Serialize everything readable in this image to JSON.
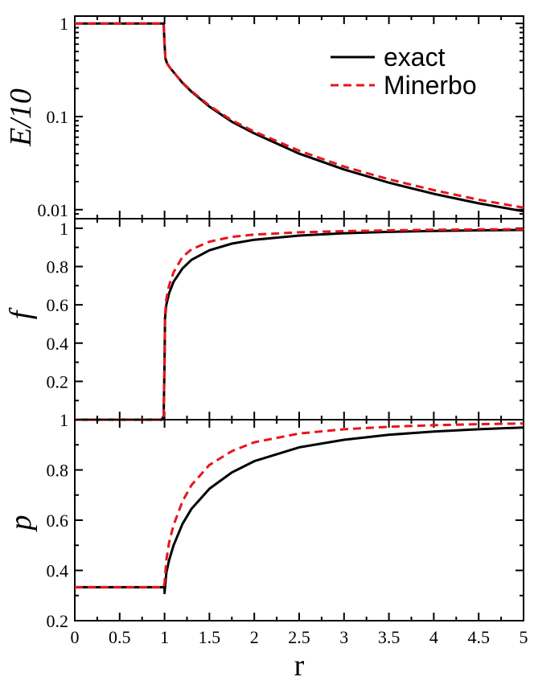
{
  "chart_data": {
    "type": "line",
    "x": {
      "label": "r",
      "range": [
        0,
        5
      ],
      "ticks": [
        0,
        0.5,
        1,
        1.5,
        2,
        2.5,
        3,
        3.5,
        4,
        4.5,
        5
      ],
      "tick_labels": [
        "0",
        "0.5",
        "1",
        "1.5",
        "2",
        "2.5",
        "3",
        "3.5",
        "4",
        "4.5",
        "5"
      ]
    },
    "legend": {
      "placement": "top-right of top panel",
      "entries": [
        {
          "name": "exact",
          "style": "solid",
          "color": "#000000"
        },
        {
          "name": "Minerbo",
          "style": "dashed",
          "color": "#e8141c"
        }
      ]
    },
    "panels": [
      {
        "id": "E",
        "ylabel": "E/10",
        "yscale": "log",
        "ylim": [
          0.008,
          1.2
        ],
        "ticks": [
          0.01,
          0.1,
          1
        ],
        "tick_labels": [
          "0.01",
          "0.1",
          "1"
        ],
        "series": [
          {
            "name": "exact",
            "x": [
              0,
              0.5,
              0.99,
              1.0,
              1.01,
              1.03,
              1.06,
              1.1,
              1.2,
              1.3,
              1.5,
              1.75,
              2,
              2.5,
              3,
              3.5,
              4,
              4.5,
              5
            ],
            "y": [
              1,
              1,
              1,
              0.6,
              0.42,
              0.37,
              0.335,
              0.3,
              0.23,
              0.185,
              0.128,
              0.088,
              0.066,
              0.04,
              0.027,
              0.0195,
              0.0148,
              0.0117,
              0.0096
            ]
          },
          {
            "name": "Minerbo",
            "x": [
              0,
              0.5,
              0.99,
              1.0,
              1.01,
              1.03,
              1.06,
              1.1,
              1.2,
              1.3,
              1.5,
              1.75,
              2,
              2.5,
              3,
              3.5,
              4,
              4.5,
              5
            ],
            "y": [
              1,
              1,
              1,
              0.6,
              0.42,
              0.37,
              0.335,
              0.3,
              0.232,
              0.188,
              0.131,
              0.091,
              0.069,
              0.043,
              0.029,
              0.0212,
              0.0162,
              0.0128,
              0.0105
            ]
          }
        ]
      },
      {
        "id": "f",
        "ylabel": "f",
        "yscale": "linear",
        "ylim": [
          0,
          1.05
        ],
        "ticks": [
          0.2,
          0.4,
          0.6,
          0.8,
          1
        ],
        "tick_labels": [
          "0.2",
          "0.4",
          "0.6",
          "0.8",
          "1"
        ],
        "series": [
          {
            "name": "exact",
            "x": [
              0,
              0.97,
              0.99,
              1.0,
              1.005,
              1.02,
              1.05,
              1.1,
              1.2,
              1.3,
              1.5,
              1.75,
              2,
              2.5,
              3,
              3.5,
              4,
              4.5,
              5
            ],
            "y": [
              0,
              0,
              0.02,
              0.3,
              0.53,
              0.6,
              0.66,
              0.72,
              0.79,
              0.835,
              0.885,
              0.92,
              0.94,
              0.962,
              0.974,
              0.981,
              0.986,
              0.989,
              0.991
            ]
          },
          {
            "name": "Minerbo",
            "x": [
              0,
              0.97,
              0.99,
              1.0,
              1.005,
              1.02,
              1.05,
              1.1,
              1.2,
              1.3,
              1.5,
              1.75,
              2,
              2.5,
              3,
              3.5,
              4,
              4.5,
              5
            ],
            "y": [
              0,
              0,
              0.02,
              0.3,
              0.55,
              0.63,
              0.7,
              0.77,
              0.85,
              0.89,
              0.93,
              0.955,
              0.967,
              0.979,
              0.985,
              0.989,
              0.992,
              0.994,
              0.995
            ]
          }
        ]
      },
      {
        "id": "p",
        "ylabel": "p",
        "yscale": "linear",
        "ylim": [
          0.2,
          1
        ],
        "ticks": [
          0.2,
          0.4,
          0.6,
          0.8,
          1
        ],
        "tick_labels": [
          "0.2",
          "0.4",
          "0.6",
          "0.8",
          "1"
        ],
        "series": [
          {
            "name": "exact",
            "x": [
              0,
              0.5,
              0.99,
              1.0,
              1.0,
              1.02,
              1.05,
              1.1,
              1.2,
              1.3,
              1.5,
              1.75,
              2,
              2.5,
              3,
              3.5,
              4,
              4.5,
              5
            ],
            "y": [
              0.333,
              0.333,
              0.333,
              0.333,
              0.31,
              0.39,
              0.44,
              0.5,
              0.585,
              0.645,
              0.725,
              0.79,
              0.835,
              0.89,
              0.92,
              0.94,
              0.953,
              0.962,
              0.969
            ]
          },
          {
            "name": "Minerbo",
            "x": [
              0,
              0.5,
              0.99,
              1.0,
              1.02,
              1.05,
              1.1,
              1.2,
              1.3,
              1.5,
              1.75,
              2,
              2.5,
              3,
              3.5,
              4,
              4.5,
              5
            ],
            "y": [
              0.333,
              0.333,
              0.333,
              0.35,
              0.44,
              0.51,
              0.58,
              0.675,
              0.74,
              0.82,
              0.875,
              0.91,
              0.945,
              0.962,
              0.972,
              0.978,
              0.982,
              0.985
            ]
          }
        ]
      }
    ]
  }
}
